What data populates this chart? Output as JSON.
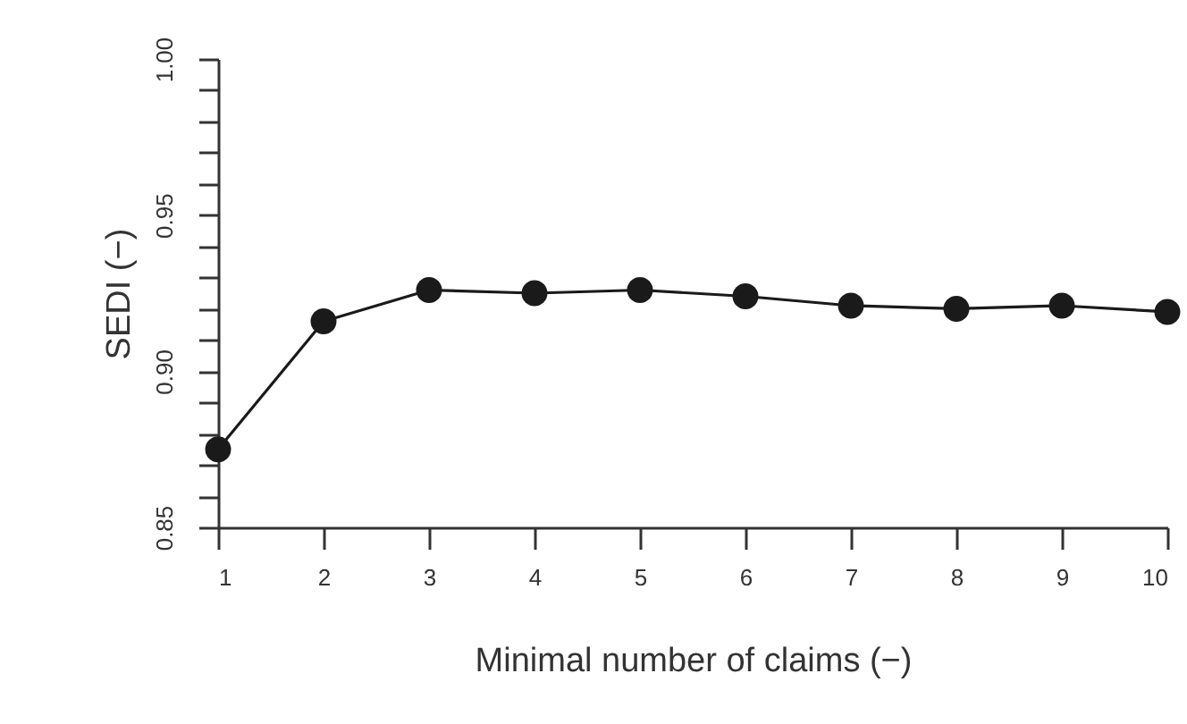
{
  "chart_data": {
    "type": "line",
    "xlabel": "Minimal number of claims (−)",
    "ylabel": "SEDI (−)",
    "x": [
      1,
      2,
      3,
      4,
      5,
      6,
      7,
      8,
      9,
      10
    ],
    "series": [
      {
        "color": "#1a1a1a",
        "values": [
          0.875,
          0.916,
          0.926,
          0.925,
          0.926,
          0.924,
          0.921,
          0.92,
          0.921,
          0.919
        ]
      }
    ],
    "xlim": [
      1,
      10
    ],
    "xticks": [
      1,
      2,
      3,
      4,
      5,
      6,
      7,
      8,
      9,
      10
    ],
    "ylim": [
      0.85,
      1.0
    ],
    "yticks": [
      {
        "value": 0.85,
        "label": "0.85"
      },
      {
        "value": 0.86,
        "label": null
      },
      {
        "value": 0.87,
        "label": null
      },
      {
        "value": 0.88,
        "label": null
      },
      {
        "value": 0.89,
        "label": null
      },
      {
        "value": 0.9,
        "label": "0.90"
      },
      {
        "value": 0.91,
        "label": null
      },
      {
        "value": 0.92,
        "label": null
      },
      {
        "value": 0.93,
        "label": null
      },
      {
        "value": 0.94,
        "label": null
      },
      {
        "value": 0.95,
        "label": "0.95"
      },
      {
        "value": 0.96,
        "label": null
      },
      {
        "value": 0.97,
        "label": null
      },
      {
        "value": 0.98,
        "label": null
      },
      {
        "value": 0.99,
        "label": null
      },
      {
        "value": 1.0,
        "label": "1.00"
      }
    ],
    "grid": false,
    "marker": "circle",
    "line_style": "solid"
  }
}
